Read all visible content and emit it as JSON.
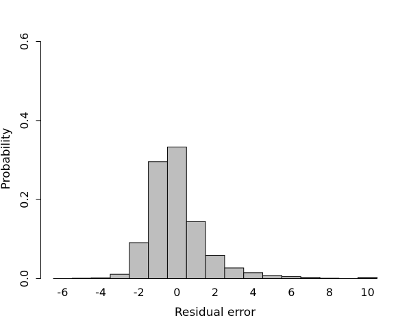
{
  "chart_data": {
    "type": "bar",
    "title": "",
    "xlabel": "Residual error",
    "ylabel": "Probability",
    "xlim": [
      -6.5,
      10.5
    ],
    "ylim": [
      0,
      0.6
    ],
    "xticks": [
      -6,
      -4,
      -2,
      0,
      2,
      4,
      6,
      8,
      10
    ],
    "xtick_labels": [
      "-6",
      "-4",
      "-2",
      "0",
      "2",
      "4",
      "6",
      "8",
      "10"
    ],
    "yticks": [
      0,
      0.2,
      0.4,
      0.6
    ],
    "ytick_labels": [
      "0.0",
      "0.2",
      "0.4",
      "0.6"
    ],
    "bin_width": 1,
    "bin_starts": [
      -6,
      -5,
      -4,
      -3,
      -2,
      -1,
      0,
      1,
      2,
      3,
      4,
      5,
      6,
      7,
      8,
      9,
      10
    ],
    "values": [
      0.0,
      0.001,
      0.002,
      0.011,
      0.091,
      0.296,
      0.333,
      0.144,
      0.059,
      0.027,
      0.015,
      0.008,
      0.005,
      0.003,
      0.001,
      0.0,
      0.003
    ],
    "grid": false,
    "colors": {
      "bar_fill": "#bebebe",
      "bar_stroke": "#000000"
    }
  }
}
